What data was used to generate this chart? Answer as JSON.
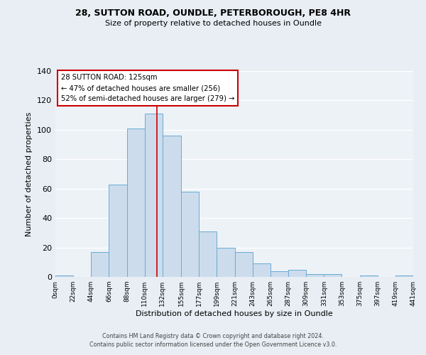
{
  "title1": "28, SUTTON ROAD, OUNDLE, PETERBOROUGH, PE8 4HR",
  "title2": "Size of property relative to detached houses in Oundle",
  "xlabel": "Distribution of detached houses by size in Oundle",
  "ylabel": "Number of detached properties",
  "bar_edges": [
    0,
    22,
    44,
    66,
    88,
    110,
    132,
    155,
    177,
    199,
    221,
    243,
    265,
    287,
    309,
    331,
    353,
    375,
    397,
    419,
    441
  ],
  "bar_heights": [
    1,
    0,
    17,
    63,
    101,
    111,
    96,
    58,
    31,
    20,
    17,
    9,
    4,
    5,
    2,
    2,
    0,
    1,
    0,
    1
  ],
  "bar_color": "#ccdcec",
  "bar_edgecolor": "#6aaad4",
  "ylim": [
    0,
    140
  ],
  "yticks": [
    0,
    20,
    40,
    60,
    80,
    100,
    120,
    140
  ],
  "xtick_labels": [
    "0sqm",
    "22sqm",
    "44sqm",
    "66sqm",
    "88sqm",
    "110sqm",
    "132sqm",
    "155sqm",
    "177sqm",
    "199sqm",
    "221sqm",
    "243sqm",
    "265sqm",
    "287sqm",
    "309sqm",
    "331sqm",
    "353sqm",
    "375sqm",
    "397sqm",
    "419sqm",
    "441sqm"
  ],
  "vline_x": 125,
  "vline_color": "#cc0000",
  "annotation_box_text": "28 SUTTON ROAD: 125sqm\n← 47% of detached houses are smaller (256)\n52% of semi-detached houses are larger (279) →",
  "footer1": "Contains HM Land Registry data © Crown copyright and database right 2024.",
  "footer2": "Contains public sector information licensed under the Open Government Licence v3.0.",
  "bg_color": "#e8eef4",
  "plot_bg_color": "#edf2f7"
}
